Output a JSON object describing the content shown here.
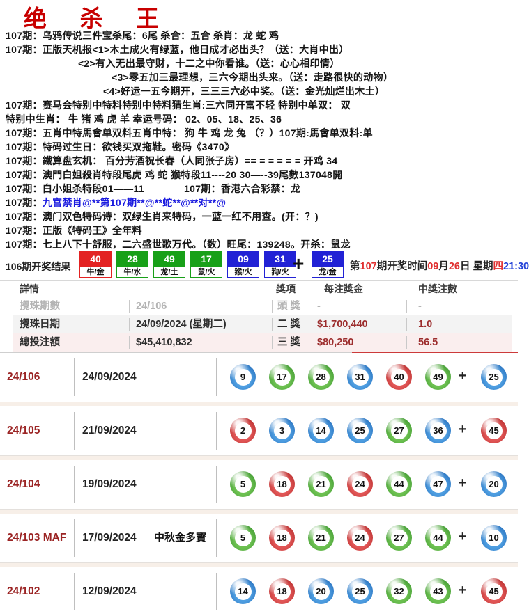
{
  "title": "绝 杀 王",
  "colors": {
    "red": "#e32222",
    "green": "#18a018",
    "blue": "#2222d5",
    "link_blue": "#1a1adf",
    "dark_red": "#9c2d2d"
  },
  "tips": [
    {
      "indent": 8,
      "text": "107期：乌鸦传说三件宝杀尾：6尾 杀合：五合 杀肖：龙 蛇 鸡"
    },
    {
      "indent": 8,
      "text": "107期：正版天机报<1>木土成火有绿蓝，他日成才必出头？（送：大肖中出）"
    },
    {
      "indent": 112,
      "text": "<2>有入无出最守财，十二之中你看谁。（送：心心相印情）"
    },
    {
      "indent": 160,
      "text": "<3>零五加三最理想，三六今期出头来。（送：走路很快的动物）"
    },
    {
      "indent": 148,
      "text": "<4>好运一五今期开，三三三六必中奖。（送：金光灿烂出木土）"
    },
    {
      "indent": 8,
      "text": "107期：赛马会特别中特料特别中特料猜生肖:三六同开富不轻 特别中单双： 双"
    },
    {
      "indent": 8,
      "text": "特别中生肖： 牛 猪 鸡 虎 羊 幸运号码： 02、05、18、25、36"
    },
    {
      "indent": 8,
      "text": "107期：五肖中特馬會单双料五肖中特： 狗 牛 鸡 龙 兔 （？）107期:馬會单双料:单"
    },
    {
      "indent": 8,
      "text": "107期：特码过生日：欲钱买双拖鞋。密码《3470》"
    },
    {
      "indent": 8,
      "text": "107期：鐵算盘玄机： 百分芳酒祝长春（人同张子房）== = = = = = 开鸡 34"
    },
    {
      "indent": 8,
      "text": "107期：澳門白姐殺肖特段尾虎 鸡 蛇 猴特段11----20 30—--39尾數137048開"
    },
    {
      "indent": 8,
      "text": "107期：白小姐杀特段01——11　　　　107期：香港六合彩禁：龙"
    },
    {
      "indent": 8,
      "prefix": "107期：",
      "link": "九宫禁肖@**第107期**@**蛇**@**对**@"
    },
    {
      "indent": 8,
      "text": "107期：澳门双色特码诗：双绿生肖来特码，一蓝一红不用查。(开：？)"
    },
    {
      "indent": 8,
      "text": "107期：正版《特码王》全年料"
    },
    {
      "indent": 8,
      "text": "107期：七上八下十舒服，二六盛世歌万代。（数）旺尾：139248。开杀：鼠龙"
    }
  ],
  "result_bar": {
    "label": "106期开奖结果",
    "plus": "+",
    "balls": [
      {
        "num": "40",
        "color": "red",
        "zodiac": "牛/金"
      },
      {
        "num": "28",
        "color": "green",
        "zodiac": "牛/水"
      },
      {
        "num": "49",
        "color": "green",
        "zodiac": "龙/土"
      },
      {
        "num": "17",
        "color": "green",
        "zodiac": "鼠/火"
      },
      {
        "num": "09",
        "color": "blue",
        "zodiac": "猴/火"
      },
      {
        "num": "31",
        "color": "blue",
        "zodiac": "狗/火"
      }
    ],
    "bonus": {
      "num": "25",
      "color": "blue",
      "zodiac": "龙/金"
    },
    "next_draw_segments": [
      {
        "t": "第",
        "c": "k"
      },
      {
        "t": "107",
        "c": "r"
      },
      {
        "t": "期开奖时间",
        "c": "k"
      },
      {
        "t": "09",
        "c": "r"
      },
      {
        "t": "月",
        "c": "k"
      },
      {
        "t": "26",
        "c": "r"
      },
      {
        "t": "日 星期",
        "c": "k"
      },
      {
        "t": "四",
        "c": "r"
      },
      {
        "t": "21:30",
        "c": "b"
      }
    ]
  },
  "prize_table": {
    "headers": {
      "details": "詳情",
      "prize_item": "獎項",
      "prize_amount": "每注獎金",
      "winning_units": "中獎注數"
    },
    "rows": [
      {
        "label": "攪珠期數",
        "value": "24/106",
        "prize": "頭 獎",
        "amount": "-",
        "units": "-",
        "faded": true,
        "bg": "#ffffff"
      },
      {
        "label": "攪珠日期",
        "value": "24/09/2024 (星期二)",
        "prize": "二 獎",
        "amount": "$1,700,440",
        "units": "1.0",
        "faded": false,
        "bg": "#f3f3f3"
      },
      {
        "label": "總投注額",
        "value": "$45,410,832",
        "prize": "三 獎",
        "amount": "$80,250",
        "units": "56.5",
        "faded": false,
        "bg": "#faeeee"
      }
    ]
  },
  "history": [
    {
      "period": "24/106",
      "date": "24/09/2024",
      "note": "",
      "balls": [
        {
          "n": "9",
          "c": "blue"
        },
        {
          "n": "17",
          "c": "green"
        },
        {
          "n": "28",
          "c": "green"
        },
        {
          "n": "31",
          "c": "blue"
        },
        {
          "n": "40",
          "c": "red"
        },
        {
          "n": "49",
          "c": "green"
        }
      ],
      "bonus": {
        "n": "25",
        "c": "blue"
      }
    },
    {
      "period": "24/105",
      "date": "21/09/2024",
      "note": "",
      "balls": [
        {
          "n": "2",
          "c": "red"
        },
        {
          "n": "3",
          "c": "blue"
        },
        {
          "n": "14",
          "c": "blue"
        },
        {
          "n": "25",
          "c": "blue"
        },
        {
          "n": "27",
          "c": "green"
        },
        {
          "n": "36",
          "c": "blue"
        }
      ],
      "bonus": {
        "n": "45",
        "c": "red"
      }
    },
    {
      "period": "24/104",
      "date": "19/09/2024",
      "note": "",
      "balls": [
        {
          "n": "5",
          "c": "green"
        },
        {
          "n": "18",
          "c": "red"
        },
        {
          "n": "21",
          "c": "green"
        },
        {
          "n": "24",
          "c": "red"
        },
        {
          "n": "44",
          "c": "green"
        },
        {
          "n": "47",
          "c": "blue"
        }
      ],
      "bonus": {
        "n": "20",
        "c": "blue"
      }
    },
    {
      "period": "24/103 MAF",
      "date": "17/09/2024",
      "note": "中秋金多寳",
      "balls": [
        {
          "n": "5",
          "c": "green"
        },
        {
          "n": "18",
          "c": "red"
        },
        {
          "n": "21",
          "c": "green"
        },
        {
          "n": "24",
          "c": "red"
        },
        {
          "n": "27",
          "c": "green"
        },
        {
          "n": "44",
          "c": "green"
        }
      ],
      "bonus": {
        "n": "10",
        "c": "blue"
      }
    },
    {
      "period": "24/102",
      "date": "12/09/2024",
      "note": "",
      "balls": [
        {
          "n": "14",
          "c": "blue"
        },
        {
          "n": "18",
          "c": "red"
        },
        {
          "n": "20",
          "c": "blue"
        },
        {
          "n": "25",
          "c": "blue"
        },
        {
          "n": "32",
          "c": "green"
        },
        {
          "n": "43",
          "c": "green"
        }
      ],
      "bonus": {
        "n": "45",
        "c": "red"
      }
    },
    {
      "plus": "+"
    }
  ]
}
